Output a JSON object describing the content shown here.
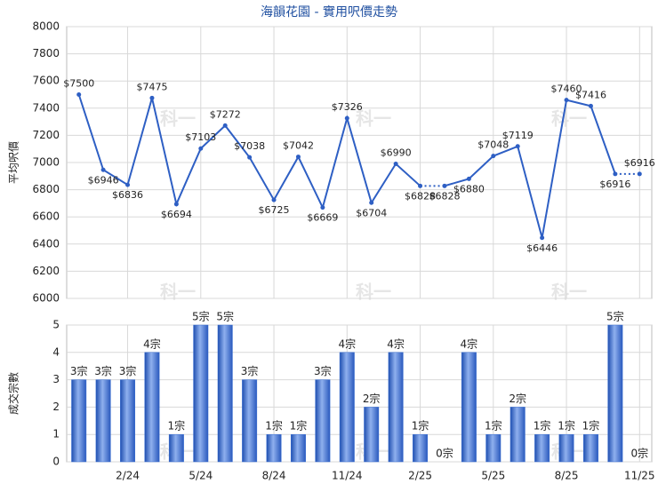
{
  "title": "海韻花園 - 實用呎價走勢",
  "watermark": "科一",
  "chart_data": [
    {
      "type": "line",
      "ylabel": "平均呎價",
      "color": "#2e5fc4",
      "values": [
        7500,
        6946,
        6836,
        7475,
        6694,
        7103,
        7272,
        7038,
        6725,
        7042,
        6669,
        7326,
        6704,
        6990,
        6828,
        6828,
        6880,
        7048,
        7119,
        6446,
        7460,
        7416,
        6916,
        6916
      ],
      "value_labels": [
        "$7500",
        "$6946",
        "$6836",
        "$7475",
        "$6694",
        "$7103",
        "$7272",
        "$7038",
        "$6725",
        "$7042",
        "$6669",
        "$7326",
        "$6704",
        "$6990",
        "$6828",
        "$6828",
        "$6880",
        "$7048",
        "$7119",
        "$6446",
        "$7460",
        "$7416",
        "$6916",
        "$6916"
      ],
      "ylim": [
        6000,
        8000
      ],
      "yticks": [
        6000,
        6200,
        6400,
        6600,
        6800,
        7000,
        7200,
        7400,
        7600,
        7800,
        8000
      ],
      "grid": true
    },
    {
      "type": "bar",
      "ylabel": "成交宗數",
      "color": "#3a6fd3",
      "categories": [
        null,
        null,
        "2/24",
        null,
        null,
        "5/24",
        null,
        null,
        "8/24",
        null,
        null,
        "11/24",
        null,
        null,
        "2/25",
        null,
        null,
        "5/25",
        null,
        null,
        "8/25",
        null,
        null,
        "11/25"
      ],
      "values": [
        3,
        3,
        3,
        4,
        1,
        5,
        5,
        3,
        1,
        1,
        3,
        4,
        2,
        4,
        1,
        0,
        4,
        1,
        2,
        1,
        1,
        1,
        5,
        0
      ],
      "value_labels": [
        "3宗",
        "3宗",
        "3宗",
        "4宗",
        "1宗",
        "5宗",
        "5宗",
        "3宗",
        "1宗",
        "1宗",
        "3宗",
        "4宗",
        "2宗",
        "4宗",
        "1宗",
        "0宗",
        "4宗",
        "1宗",
        "2宗",
        "1宗",
        "1宗",
        "1宗",
        "5宗",
        "0宗"
      ],
      "ylim": [
        0,
        5
      ],
      "yticks": [
        0,
        1,
        2,
        3,
        4,
        5
      ],
      "grid": true
    }
  ]
}
